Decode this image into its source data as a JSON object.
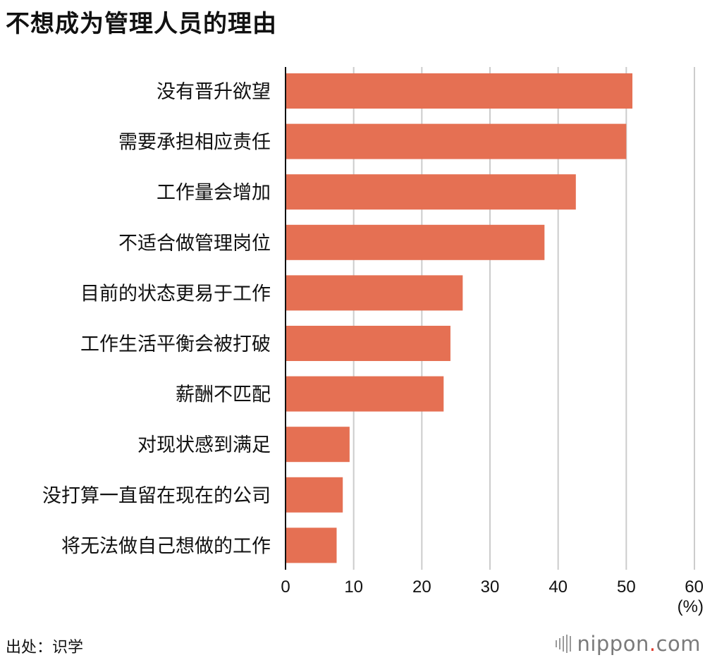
{
  "chart_data": {
    "type": "bar",
    "orientation": "horizontal",
    "title": "不想成为管理人员的理由",
    "categories": [
      "没有晋升欲望",
      "需要承担相应责任",
      "工作量会增加",
      "不适合做管理岗位",
      "目前的状态更易于工作",
      "工作生活平衡会被打破",
      "薪酬不匹配",
      "对现状感到满足",
      "没打算一直留在现在的公司",
      "将无法做自己想做的工作"
    ],
    "values": [
      50.9,
      50.0,
      42.6,
      38.0,
      26.0,
      24.2,
      23.2,
      9.4,
      8.4,
      7.5
    ],
    "xlim": [
      0,
      60
    ],
    "xticks": [
      "0",
      "10",
      "20",
      "30",
      "40",
      "50",
      "60"
    ],
    "unit": "(%)",
    "grid": true,
    "bar_color": "#e57053",
    "grid_color": "#cccccc"
  },
  "source": "出处：识学",
  "logo": {
    "name": "nippon",
    "dot": ".",
    "domain": "com"
  }
}
